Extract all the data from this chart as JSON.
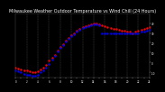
{
  "title": "Milwaukee Weather Outdoor Temperature vs Wind Chill (24 Hours)",
  "title_fontsize": 3.5,
  "bg_color": "#000000",
  "plot_bg_color": "#000000",
  "text_color": "#ffffff",
  "grid_color": "#555555",
  "x_range": [
    0,
    24
  ],
  "y_range": [
    -15,
    50
  ],
  "y_ticks": [
    -10,
    0,
    10,
    20,
    30,
    40
  ],
  "y_tick_labels": [
    "-10",
    "0",
    "10",
    "20",
    "30",
    "40"
  ],
  "grid_x_positions": [
    2,
    4,
    6,
    8,
    10,
    12,
    14,
    16,
    18,
    20,
    22,
    24
  ],
  "temp_color": "#ff0000",
  "wind_chill_color": "#0000ff",
  "marker_size": 1.5,
  "temp_data": [
    [
      0,
      -5
    ],
    [
      0.5,
      -6
    ],
    [
      1,
      -7
    ],
    [
      1.5,
      -8
    ],
    [
      2,
      -8
    ],
    [
      2.5,
      -9
    ],
    [
      3,
      -10
    ],
    [
      3.5,
      -10
    ],
    [
      4,
      -9
    ],
    [
      4.5,
      -7
    ],
    [
      5,
      -5
    ],
    [
      5.5,
      -2
    ],
    [
      6,
      2
    ],
    [
      6.5,
      5
    ],
    [
      7,
      8
    ],
    [
      7.5,
      12
    ],
    [
      8,
      16
    ],
    [
      8.5,
      19
    ],
    [
      9,
      22
    ],
    [
      9.5,
      25
    ],
    [
      10,
      28
    ],
    [
      10.5,
      30
    ],
    [
      11,
      32
    ],
    [
      11.5,
      34
    ],
    [
      12,
      36
    ],
    [
      12.5,
      37
    ],
    [
      13,
      38
    ],
    [
      13.5,
      39
    ],
    [
      14,
      40
    ],
    [
      14.5,
      40
    ],
    [
      15,
      39
    ],
    [
      15.5,
      38
    ],
    [
      16,
      37
    ],
    [
      16.5,
      36
    ],
    [
      17,
      35
    ],
    [
      17.5,
      34
    ],
    [
      18,
      34
    ],
    [
      18.5,
      33
    ],
    [
      19,
      32
    ],
    [
      19.5,
      32
    ],
    [
      20,
      31
    ],
    [
      20.5,
      31
    ],
    [
      21,
      30
    ],
    [
      21.5,
      31
    ],
    [
      22,
      32
    ],
    [
      22.5,
      33
    ],
    [
      23,
      34
    ],
    [
      23.5,
      35
    ],
    [
      24,
      36
    ]
  ],
  "wind_chill_data": [
    [
      0,
      -8
    ],
    [
      0.5,
      -9
    ],
    [
      1,
      -10
    ],
    [
      1.5,
      -11
    ],
    [
      2,
      -12
    ],
    [
      2.5,
      -12
    ],
    [
      3,
      -13
    ],
    [
      3.5,
      -13
    ],
    [
      4,
      -12
    ],
    [
      4.5,
      -10
    ],
    [
      5,
      -8
    ],
    [
      5.5,
      -5
    ],
    [
      6,
      -1
    ],
    [
      6.5,
      3
    ],
    [
      7,
      7
    ],
    [
      7.5,
      11
    ],
    [
      8,
      15
    ],
    [
      8.5,
      18
    ],
    [
      9,
      21
    ],
    [
      9.5,
      24
    ],
    [
      10,
      27
    ],
    [
      10.5,
      29
    ],
    [
      11,
      31
    ],
    [
      11.5,
      33
    ],
    [
      12,
      35
    ],
    [
      12.5,
      36
    ],
    [
      13,
      37
    ],
    [
      13.5,
      38
    ],
    [
      14,
      39
    ],
    [
      14.5,
      39
    ],
    [
      15,
      38
    ],
    [
      15.5,
      30
    ],
    [
      16,
      30
    ],
    [
      16.5,
      30
    ],
    [
      17,
      30
    ],
    [
      17.5,
      30
    ],
    [
      18,
      30
    ],
    [
      18.5,
      30
    ],
    [
      19,
      30
    ],
    [
      19.5,
      30
    ],
    [
      20,
      30
    ],
    [
      20.5,
      30
    ],
    [
      21,
      30
    ],
    [
      21.5,
      30
    ],
    [
      22,
      30
    ],
    [
      22.5,
      31
    ],
    [
      23,
      31
    ],
    [
      23.5,
      32
    ],
    [
      24,
      33
    ]
  ]
}
